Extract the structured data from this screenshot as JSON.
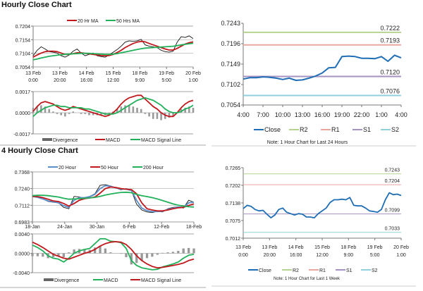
{
  "titles": {
    "hourly": "Hourly Close Chart",
    "four_hourly": "4 Hourly Close Chart"
  },
  "colors": {
    "close": "#1f6eb5",
    "ma_red": "#c0181c",
    "ma_green": "#22b05a",
    "ma_blue": "#5b8fc9",
    "divergence": "#888888",
    "r2": "#b5d38f",
    "r1": "#e8a8a0",
    "s1": "#a493c2",
    "s2": "#8fd0dc"
  },
  "chart_data": [
    {
      "id": "hourly-price",
      "type": "line",
      "yticks": [
        "0.7204",
        "0.7154",
        "0.7104",
        "0.7054"
      ],
      "ylim": [
        0.7054,
        0.7204
      ],
      "xticks": [
        [
          "13 Feb",
          "0:00"
        ],
        [
          "13 Feb",
          "20:00"
        ],
        [
          "14 Feb",
          "16:00"
        ],
        [
          "15 Feb",
          "12:00"
        ],
        [
          "18 Feb",
          "9:00"
        ],
        [
          "19 Feb",
          "5:00"
        ],
        [
          "20 Feb",
          "1:00"
        ]
      ],
      "legend": [
        "20 Hr MA",
        "50 Hrs MA"
      ],
      "price": [
        0.7095,
        0.7115,
        0.7128,
        0.712,
        0.711,
        0.7108,
        0.7105,
        0.7095,
        0.709,
        0.7098,
        0.7112,
        0.712,
        0.7105,
        0.7095,
        0.71,
        0.7105,
        0.7095,
        0.7092,
        0.709,
        0.7098,
        0.7108,
        0.7118,
        0.713,
        0.7145,
        0.715,
        0.7148,
        0.715,
        0.7155,
        0.7135,
        0.713,
        0.7128,
        0.7125,
        0.7115,
        0.711,
        0.7108,
        0.7112,
        0.7145,
        0.7165,
        0.7162,
        0.7168,
        0.7158
      ],
      "series": [
        {
          "name": "20 Hr MA",
          "color": "#c0181c",
          "values": [
            0.709,
            0.7098,
            0.7105,
            0.711,
            0.7112,
            0.7112,
            0.711,
            0.7105,
            0.71,
            0.71,
            0.7103,
            0.7106,
            0.7106,
            0.7104,
            0.7102,
            0.71,
            0.7098,
            0.7096,
            0.7095,
            0.7096,
            0.71,
            0.7107,
            0.7115,
            0.7125,
            0.7133,
            0.714,
            0.7145,
            0.7148,
            0.7146,
            0.714,
            0.7135,
            0.713,
            0.7125,
            0.712,
            0.7116,
            0.7116,
            0.7122,
            0.713,
            0.7138,
            0.7143,
            0.7146
          ]
        },
        {
          "name": "50 Hrs MA",
          "color": "#22b05a",
          "values": [
            0.708,
            0.7083,
            0.7087,
            0.709,
            0.7093,
            0.7095,
            0.7097,
            0.7099,
            0.71,
            0.7101,
            0.7102,
            0.7103,
            0.7104,
            0.7104,
            0.7104,
            0.7103,
            0.7102,
            0.7101,
            0.71,
            0.71,
            0.7101,
            0.7103,
            0.7106,
            0.7109,
            0.7112,
            0.7115,
            0.7118,
            0.7121,
            0.7123,
            0.7124,
            0.7125,
            0.7126,
            0.7127,
            0.7128,
            0.7129,
            0.713,
            0.7132,
            0.7135,
            0.7137,
            0.7139,
            0.7141
          ]
        }
      ]
    },
    {
      "id": "hourly-macd",
      "type": "line",
      "yticks": [
        "0.0017",
        "0.0000",
        "-0.0017"
      ],
      "ylim": [
        -0.0017,
        0.0017
      ],
      "legend": [
        "Divergence",
        "MACD",
        "MACD Signal Line"
      ],
      "series": [
        {
          "name": "MACD",
          "color": "#c0181c",
          "values": [
            0.0001,
            0.0005,
            0.0008,
            0.0009,
            0.0008,
            0.0007,
            0.0005,
            0.0003,
            0.0002,
            0.0003,
            0.0005,
            0.0004,
            0.0003,
            0.0002,
            0.0001,
            0,
            -0.0001,
            -0.0002,
            -0.0003,
            -0.0002,
            0,
            0.0003,
            0.0007,
            0.001,
            0.0012,
            0.0013,
            0.0014,
            0.0014,
            0.0011,
            0.0008,
            0.0005,
            0.0003,
            0,
            -0.0002,
            -0.0003,
            -0.0003,
            0,
            0.0004,
            0.0007,
            0.0009,
            0.001
          ]
        },
        {
          "name": "MACD Signal Line",
          "color": "#22b05a",
          "values": [
            -0.0003,
            0,
            0.0002,
            0.0004,
            0.0005,
            0.0006,
            0.0006,
            0.0005,
            0.0005,
            0.0004,
            0.0004,
            0.0004,
            0.0004,
            0.0003,
            0.0003,
            0.0002,
            0.0001,
            0,
            -0.0001,
            -0.0001,
            -0.0001,
            0,
            0.0002,
            0.0004,
            0.0006,
            0.0008,
            0.001,
            0.0011,
            0.0012,
            0.0011,
            0.001,
            0.0008,
            0.0006,
            0.0003,
            0.0001,
            0,
            0,
            0.0001,
            0.0003,
            0.0004,
            0.0006
          ]
        }
      ]
    },
    {
      "id": "hourly-24h",
      "type": "line",
      "yticks": [
        "0.7243",
        "0.7196",
        "0.7149",
        "0.7102",
        "0.7054"
      ],
      "ylim": [
        0.7054,
        0.7243
      ],
      "xticks": [
        [
          "4:00"
        ],
        [
          "7:00"
        ],
        [
          "10:00"
        ],
        [
          "13:00"
        ],
        [
          "16:00"
        ],
        [
          "19:00"
        ],
        [
          "22:00"
        ],
        [
          "1:00"
        ],
        [
          "4:00"
        ]
      ],
      "levels": [
        {
          "name": "R2",
          "value": 0.7222,
          "label": "0.7222",
          "color": "#b5d38f"
        },
        {
          "name": "R1",
          "value": 0.7193,
          "label": "0.7193",
          "color": "#e8a8a0"
        },
        {
          "name": "S1",
          "value": 0.712,
          "label": "0.7120",
          "color": "#a493c2"
        },
        {
          "name": "S2",
          "value": 0.7076,
          "label": "0.7076",
          "color": "#8fd0dc"
        }
      ],
      "legend": [
        "Close",
        "R2",
        "R1",
        "S1",
        "S2"
      ],
      "note": "Note: 1 Hour Chart for Last 24 Hours",
      "series": [
        {
          "name": "Close",
          "color": "#1f6eb5",
          "values": [
            0.7114,
            0.7117,
            0.7117,
            0.7119,
            0.7118,
            0.7116,
            0.7113,
            0.7116,
            0.7111,
            0.7112,
            0.7116,
            0.7121,
            0.7128,
            0.714,
            0.7141,
            0.7166,
            0.7167,
            0.7166,
            0.7162,
            0.7162,
            0.7161,
            0.7166,
            0.7155,
            0.7169,
            0.7163
          ]
        }
      ]
    },
    {
      "id": "4h-price",
      "type": "line",
      "yticks": [
        "0.7368",
        "0.7240",
        "0.7112",
        "0.6983"
      ],
      "ylim": [
        0.6983,
        0.7368
      ],
      "xticks": [
        [
          "18-Jan"
        ],
        [
          "24-Jan"
        ],
        [
          "30-Jan"
        ],
        [
          "6-Feb"
        ],
        [
          "12-Feb"
        ],
        [
          "18-Feb"
        ]
      ],
      "legend": [
        "20 Hour",
        "50 Hour",
        "200 Hour"
      ],
      "price": [
        0.7185,
        0.7175,
        0.716,
        0.714,
        0.7135,
        0.713,
        0.7095,
        0.7085,
        0.718,
        0.7175,
        0.7165,
        0.718,
        0.72,
        0.7265,
        0.727,
        0.726,
        0.7245,
        0.723,
        0.724,
        0.7225,
        0.712,
        0.7075,
        0.706,
        0.7055,
        0.7065,
        0.706,
        0.7085,
        0.7095,
        0.71,
        0.709,
        0.715,
        0.7135
      ],
      "series": [
        {
          "name": "20 Hour",
          "color": "#5b8fc9",
          "values": [
            0.718,
            0.7172,
            0.716,
            0.7145,
            0.7138,
            0.713,
            0.7108,
            0.7095,
            0.715,
            0.717,
            0.717,
            0.7178,
            0.7195,
            0.724,
            0.7262,
            0.7258,
            0.7246,
            0.7235,
            0.7235,
            0.7225,
            0.715,
            0.709,
            0.707,
            0.7062,
            0.7063,
            0.7065,
            0.708,
            0.709,
            0.7098,
            0.7095,
            0.713,
            0.7135
          ]
        },
        {
          "name": "50 Hour",
          "color": "#c0181c",
          "values": [
            0.718,
            0.7178,
            0.717,
            0.7158,
            0.7145,
            0.714,
            0.7125,
            0.7105,
            0.7125,
            0.715,
            0.7162,
            0.7168,
            0.7175,
            0.7205,
            0.724,
            0.7252,
            0.7248,
            0.724,
            0.7235,
            0.7232,
            0.72,
            0.713,
            0.7085,
            0.7075,
            0.7068,
            0.7068,
            0.7075,
            0.7085,
            0.7092,
            0.7095,
            0.711,
            0.7122
          ]
        },
        {
          "name": "200 Hour",
          "color": "#22b05a",
          "values": [
            0.7185,
            0.7188,
            0.7188,
            0.7185,
            0.718,
            0.7175,
            0.7165,
            0.7158,
            0.716,
            0.7162,
            0.7165,
            0.7168,
            0.7172,
            0.718,
            0.719,
            0.7198,
            0.7205,
            0.721,
            0.7212,
            0.7208,
            0.7195,
            0.7185,
            0.7178,
            0.717,
            0.716,
            0.7148,
            0.7135,
            0.7122,
            0.7112,
            0.7105,
            0.71,
            0.7098
          ]
        }
      ]
    },
    {
      "id": "4h-macd",
      "type": "line",
      "yticks": [
        "0.0040",
        "0.0000",
        "-0.0040"
      ],
      "ylim": [
        -0.004,
        0.004
      ],
      "legend": [
        "Divergence",
        "MACD",
        "MACD Signal Line"
      ],
      "series": [
        {
          "name": "MACD",
          "color": "#22b05a",
          "values": [
            0.0017,
            0.0012,
            0.0005,
            -0.0005,
            -0.001,
            -0.0012,
            -0.0018,
            -0.001,
            0,
            0.0005,
            0.0008,
            0.001,
            0.002,
            0.003,
            0.003,
            0.0025,
            0.0024,
            0.0022,
            0.001,
            -0.0015,
            -0.0025,
            -0.003,
            -0.0032,
            -0.0034,
            -0.0033,
            -0.0028,
            -0.0025,
            -0.0022,
            -0.0018,
            -0.001,
            -0.0004,
            -0.0002
          ]
        },
        {
          "name": "MACD Signal Line",
          "color": "#c0181c",
          "values": [
            0.0023,
            0.0018,
            0.0012,
            0.0005,
            -0.0002,
            -0.0006,
            -0.001,
            -0.0012,
            -0.0008,
            -0.0004,
            0,
            0.0003,
            0.0008,
            0.0015,
            0.002,
            0.0023,
            0.0024,
            0.0023,
            0.0018,
            0.0008,
            -0.0005,
            -0.0015,
            -0.0022,
            -0.0027,
            -0.003,
            -0.0029,
            -0.0027,
            -0.0025,
            -0.0023,
            -0.002,
            -0.0015,
            -0.0012
          ]
        }
      ]
    },
    {
      "id": "hourly-week",
      "type": "line",
      "yticks": [
        "0.7265",
        "0.7202",
        "0.7138",
        "0.7075",
        "0.7012"
      ],
      "ylim": [
        0.7012,
        0.7265
      ],
      "xticks": [
        [
          "13 Feb",
          "0:00"
        ],
        [
          "13 Feb",
          "20:00"
        ],
        [
          "14 Feb",
          "16:00"
        ],
        [
          "15 Feb",
          "12:00"
        ],
        [
          "18 Feb",
          "9:00"
        ],
        [
          "19 Feb",
          "5:00"
        ],
        [
          "20 Feb",
          "1:00"
        ]
      ],
      "levels": [
        {
          "name": "R2",
          "value": 0.7243,
          "label": "0.7243",
          "color": "#b5d38f"
        },
        {
          "name": "R1",
          "value": 0.7204,
          "label": "0.7204",
          "color": "#e8a8a0"
        },
        {
          "name": "S1",
          "value": 0.7099,
          "label": "0.7099",
          "color": "#a493c2"
        },
        {
          "name": "S2",
          "value": 0.7033,
          "label": "0.7033",
          "color": "#8fd0dc"
        }
      ],
      "legend": [
        "Close",
        "R2",
        "R1",
        "S1",
        "S2"
      ],
      "note": "Note: 1 Hour Chart for Last 1 Week",
      "series": [
        {
          "name": "Close",
          "color": "#1f6eb5",
          "values": [
            0.7118,
            0.713,
            0.7126,
            0.7115,
            0.711,
            0.7112,
            0.7098,
            0.7085,
            0.7095,
            0.7115,
            0.712,
            0.7105,
            0.71,
            0.7095,
            0.71,
            0.7098,
            0.7088,
            0.7088,
            0.7085,
            0.71,
            0.711,
            0.712,
            0.714,
            0.715,
            0.715,
            0.7152,
            0.715,
            0.7158,
            0.713,
            0.7128,
            0.7128,
            0.712,
            0.711,
            0.7108,
            0.7105,
            0.7115,
            0.715,
            0.7175,
            0.7168,
            0.717,
            0.7165
          ]
        }
      ]
    }
  ]
}
